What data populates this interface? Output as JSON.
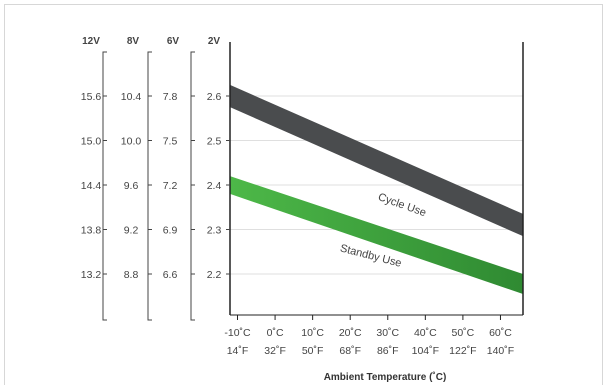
{
  "chart_data": {
    "type": "area",
    "title": "",
    "xlabel": "Ambient Temperature (˚C)",
    "x_ticks": [
      {
        "c": -10,
        "c_label": "-10˚C",
        "f_label": "14˚F"
      },
      {
        "c": 0,
        "c_label": "0˚C",
        "f_label": "32˚F"
      },
      {
        "c": 10,
        "c_label": "10˚C",
        "f_label": "50˚F"
      },
      {
        "c": 20,
        "c_label": "20˚C",
        "f_label": "68˚F"
      },
      {
        "c": 30,
        "c_label": "30˚C",
        "f_label": "86˚F"
      },
      {
        "c": 40,
        "c_label": "40˚C",
        "f_label": "104˚F"
      },
      {
        "c": 50,
        "c_label": "50˚C",
        "f_label": "122˚F"
      },
      {
        "c": 60,
        "c_label": "60˚C",
        "f_label": "140˚F"
      }
    ],
    "xlim": [
      -12,
      66
    ],
    "ylim_2v": [
      2.1,
      2.7
    ],
    "y_axes": [
      {
        "header": "12V",
        "ticks": [
          "15.6",
          "15.0",
          "14.4",
          "13.8",
          "13.2"
        ]
      },
      {
        "header": "8V",
        "ticks": [
          "10.4",
          "10.0",
          "9.6",
          "9.2",
          "8.8"
        ]
      },
      {
        "header": "6V",
        "ticks": [
          "7.8",
          "7.5",
          "7.2",
          "6.9",
          "6.6"
        ]
      },
      {
        "header": "2V",
        "ticks": [
          "2.6",
          "2.5",
          "2.4",
          "2.3",
          "2.2"
        ],
        "values": [
          2.6,
          2.5,
          2.4,
          2.3,
          2.2
        ]
      }
    ],
    "series": [
      {
        "name": "Cycle Use",
        "color": "#4a4c4e",
        "x": [
          -12,
          66
        ],
        "upper": [
          2.625,
          2.335
        ],
        "lower": [
          2.575,
          2.285
        ]
      },
      {
        "name": "Standby Use",
        "color": "#4db848",
        "color_end": "#2f8a32",
        "x": [
          -12,
          66
        ],
        "upper": [
          2.42,
          2.2
        ],
        "lower": [
          2.38,
          2.155
        ]
      }
    ],
    "grid": true
  }
}
